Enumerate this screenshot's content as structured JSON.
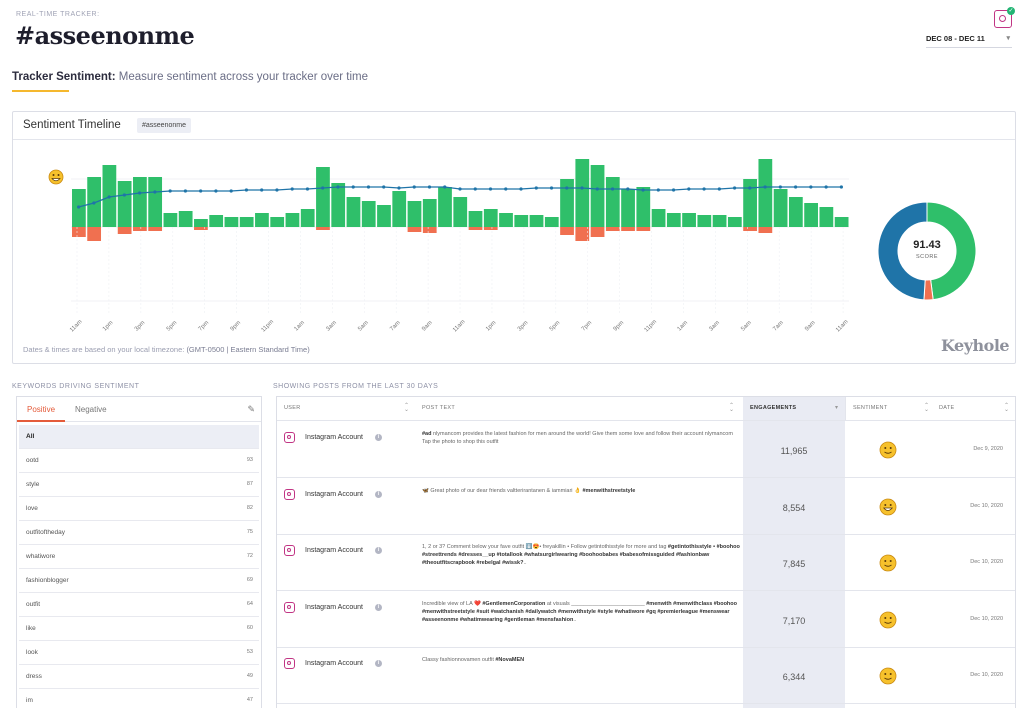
{
  "header": {
    "tracker_label": "REAL-TIME TRACKER:",
    "tracker_name": "#asseenonme",
    "date_range": "DEC 08 - DEC 11",
    "platform_icon": "instagram-icon"
  },
  "section": {
    "title_bold": "Tracker Sentiment:",
    "title_rest": "Measure sentiment across your tracker over time"
  },
  "timeline": {
    "title": "Sentiment Timeline",
    "tag": "#asseenonme",
    "timezone_prefix": "Dates & times are based on your local timezone:",
    "timezone": "(GMT-0500 | Eastern Standard Time)",
    "brand": "Keyhole",
    "score_value": "91.43",
    "score_label": "SCORE",
    "score_breakdown": {
      "positive_pct": 48,
      "negative_pct": 3,
      "neutral_pct": 49
    },
    "colors": {
      "positive": "#2fbf6a",
      "negative": "#f07050",
      "neutral": "#1f74a8",
      "line": "#1f74a8"
    }
  },
  "chart_data": {
    "type": "bar",
    "x_tick_labels": [
      "11am",
      "1pm",
      "3pm",
      "5pm",
      "7pm",
      "9pm",
      "11pm",
      "1am",
      "3am",
      "5am",
      "7am",
      "9am",
      "11am",
      "1pm",
      "3pm",
      "5pm",
      "7pm",
      "9pm",
      "11pm",
      "1am",
      "3am",
      "5am",
      "7am",
      "9am",
      "11am"
    ],
    "series": [
      {
        "values": [
          38,
          50,
          62,
          46,
          50,
          50,
          14,
          16,
          8,
          12,
          10,
          10,
          14,
          10,
          14,
          18,
          60,
          44,
          30,
          26,
          22,
          36,
          26,
          28,
          40,
          30,
          16,
          18,
          14,
          12,
          12,
          10,
          48,
          68,
          62,
          50,
          38,
          40,
          18,
          14,
          14,
          12,
          12,
          10,
          48,
          68,
          38,
          30,
          24,
          20,
          10
        ]
      },
      {
        "values": [
          10,
          14,
          0,
          7,
          4,
          4,
          0,
          0,
          3,
          0,
          0,
          0,
          0,
          0,
          0,
          0,
          3,
          0,
          0,
          0,
          0,
          0,
          5,
          6,
          0,
          0,
          3,
          3,
          0,
          0,
          0,
          0,
          8,
          14,
          10,
          4,
          4,
          4,
          0,
          0,
          0,
          0,
          0,
          0,
          4,
          6,
          0,
          0,
          0,
          0,
          0
        ]
      },
      {
        "values": [
          20,
          24,
          30,
          32,
          34,
          35,
          36,
          36,
          36,
          36,
          36,
          37,
          37,
          37,
          38,
          38,
          39,
          40,
          40,
          40,
          40,
          39,
          40,
          40,
          40,
          38,
          38,
          38,
          38,
          38,
          39,
          39,
          39,
          39,
          38,
          38,
          38,
          37,
          37,
          37,
          38,
          38,
          38,
          39,
          39,
          40,
          40,
          40,
          40,
          40,
          40
        ]
      }
    ]
  },
  "keywords": {
    "section_title": "KEYWORDS DRIVING SENTIMENT",
    "tab_positive": "Positive",
    "tab_negative": "Negative",
    "items": [
      {
        "name": "All",
        "count": ""
      },
      {
        "name": "ootd",
        "count": "93"
      },
      {
        "name": "style",
        "count": "87"
      },
      {
        "name": "love",
        "count": "82"
      },
      {
        "name": "outfitoftheday",
        "count": "75"
      },
      {
        "name": "whatiwore",
        "count": "72"
      },
      {
        "name": "fashionblogger",
        "count": "69"
      },
      {
        "name": "outfit",
        "count": "64"
      },
      {
        "name": "like",
        "count": "60"
      },
      {
        "name": "look",
        "count": "53"
      },
      {
        "name": "dress",
        "count": "49"
      },
      {
        "name": "im",
        "count": "47"
      }
    ]
  },
  "posts": {
    "section_title": "SHOWING POSTS FROM THE LAST 30 DAYS",
    "columns": {
      "user": "USER",
      "post_text": "POST TEXT",
      "engagements": "ENGAGEMENTS",
      "sentiment": "SENTIMENT",
      "date": "DATE"
    },
    "rows": [
      {
        "user": "Instagram Account",
        "text_html": "<b>#ad</b> nlymancom provides the latest fashion for men around the world! Give them some love and follow their account nlymancom Tap the photo to shop this outfit",
        "engagements": "11,965",
        "sentiment": "slight-smile-emoji",
        "date": "Dec 9, 2020"
      },
      {
        "user": "Instagram Account",
        "text_html": "🦋 Great photo of our dear friends valtterirantanen &amp; iammiari 👌 <b>#menwithstreetstyle</b>",
        "engagements": "8,554",
        "sentiment": "grin-emoji",
        "date": "Dec 10, 2020"
      },
      {
        "user": "Instagram Account",
        "text_html": "1, 2 or 3? Comment below your fave outfit ⬇️😍• freyakillin • Follow getintothisstyle for more and tag <b>#getintothisstyle • #boohoo #streettrends #dresses__up #totallook #whatsurgirlwearing #boohoobabes #babesofmissguided #fashionbaw #theoutfitscrapbook #rebelgal #wissk?</b>..",
        "engagements": "7,845",
        "sentiment": "slight-smile-emoji",
        "date": "Dec 10, 2020"
      },
      {
        "user": "Instagram Account",
        "text_html": "Incredible view of LA ❤️ <b>#GentlemenCorporation</b> at visuals ________________________ <b>#menwith #menwithclass #boohoo #menwithstreetstyle #suit #watchanish #dailywatch #menwithstyle #style #whatiwore #gq #premierleague #menswear #asseenonme #whatimwearing #gentleman #mensfashion</b>..",
        "engagements": "7,170",
        "sentiment": "slight-smile-emoji",
        "date": "Dec 10, 2020"
      },
      {
        "user": "Instagram Account",
        "text_html": "Classy fashionnovamen outfit <b>#NovaMEN</b>",
        "engagements": "6,344",
        "sentiment": "slight-smile-emoji",
        "date": "Dec 10, 2020"
      }
    ]
  }
}
